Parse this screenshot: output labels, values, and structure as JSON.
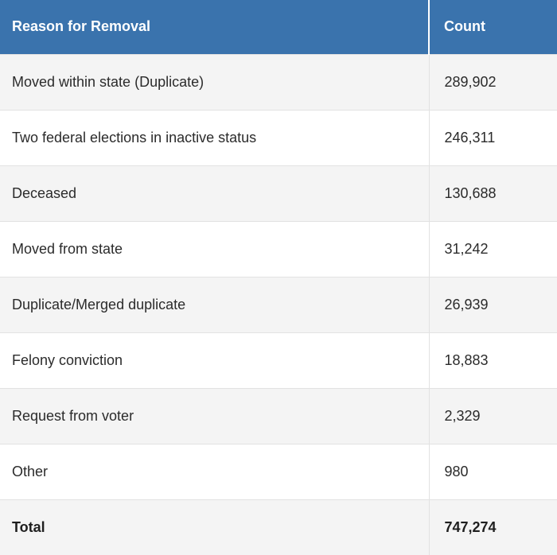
{
  "table": {
    "headers": {
      "reason": "Reason for Removal",
      "count": "Count"
    },
    "rows": [
      {
        "reason": "Moved within state (Duplicate)",
        "count": "289,902"
      },
      {
        "reason": "Two federal elections in inactive status",
        "count": "246,311"
      },
      {
        "reason": "Deceased",
        "count": "130,688"
      },
      {
        "reason": "Moved from state",
        "count": "31,242"
      },
      {
        "reason": "Duplicate/Merged duplicate",
        "count": "26,939"
      },
      {
        "reason": "Felony conviction",
        "count": "18,883"
      },
      {
        "reason": "Request from voter",
        "count": "2,329"
      },
      {
        "reason": "Other",
        "count": "980"
      }
    ],
    "total": {
      "reason": "Total",
      "count": "747,274"
    }
  },
  "colors": {
    "header_bg": "#3a73ad",
    "row_alt_bg": "#f4f4f4"
  }
}
